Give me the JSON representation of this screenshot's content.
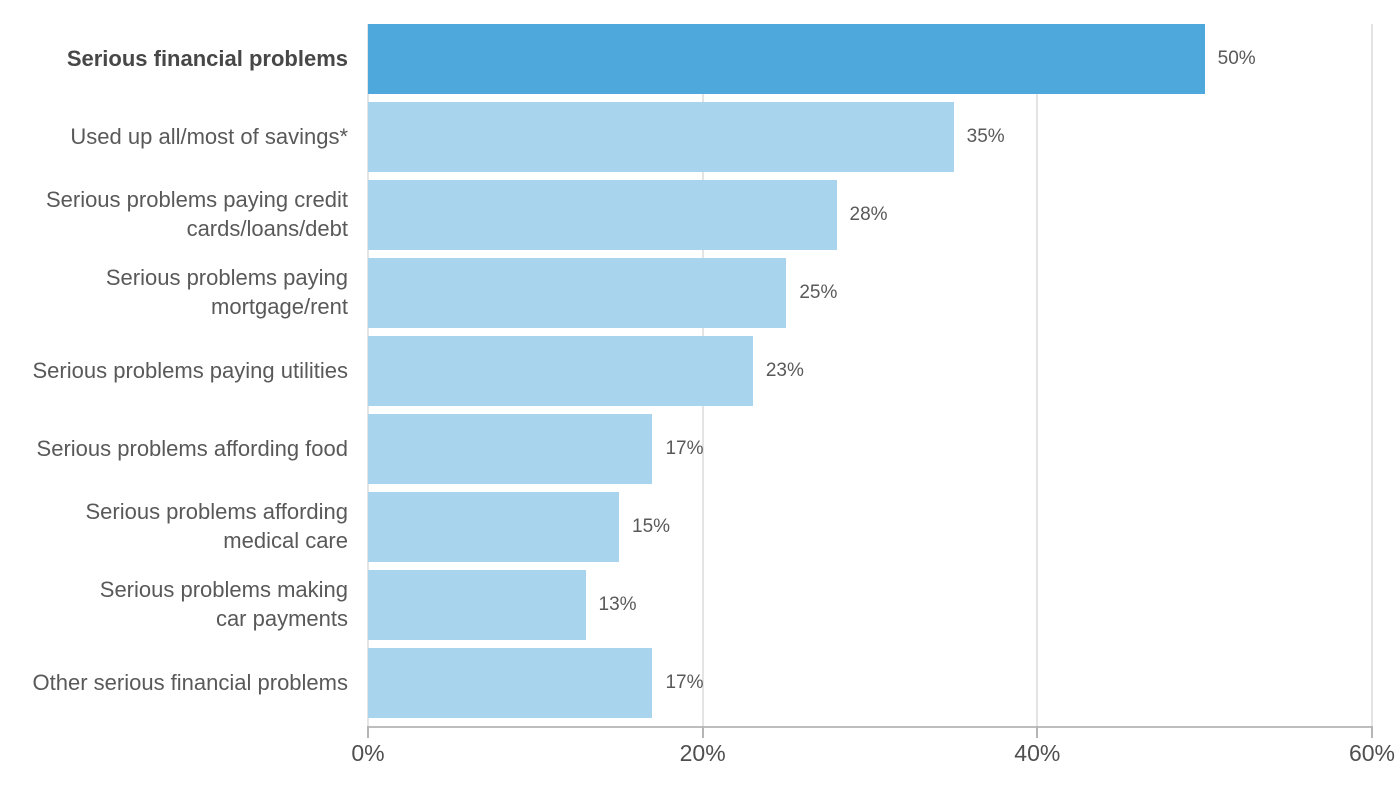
{
  "chart_data": {
    "type": "bar",
    "orientation": "horizontal",
    "title": "",
    "categories": [
      "Serious financial problems",
      "Used up all/most of savings*",
      "Serious problems paying credit\ncards/loans/debt",
      "Serious problems paying\nmortgage/rent",
      "Serious problems paying utilities",
      "Serious problems affording food",
      "Serious problems affording\nmedical care",
      "Serious problems making\ncar payments",
      "Other serious financial problems"
    ],
    "values": [
      50,
      35,
      28,
      25,
      23,
      17,
      15,
      13,
      17
    ],
    "value_labels": [
      "50%",
      "35%",
      "28%",
      "25%",
      "23%",
      "17%",
      "15%",
      "13%",
      "17%"
    ],
    "highlight_index": 0,
    "xlabel": "",
    "ylabel": "",
    "xlim": [
      0,
      60
    ],
    "x_ticks": [
      {
        "value": 0,
        "label": "0%"
      },
      {
        "value": 20,
        "label": "20%"
      },
      {
        "value": 40,
        "label": "40%"
      },
      {
        "value": 60,
        "label": "60%"
      }
    ],
    "grid": true,
    "legend": null,
    "colors": {
      "bar": "#a9d4ee",
      "highlight_bar": "#4fa8dc",
      "category_label": "#595959",
      "highlight_label": "#474747",
      "value_label": "#595959",
      "axis_line": "#bdbdbd",
      "tick_mark": "#b5b5b5",
      "tick_label": "#4f4f4f",
      "gridline": "#e4e4e4"
    }
  }
}
